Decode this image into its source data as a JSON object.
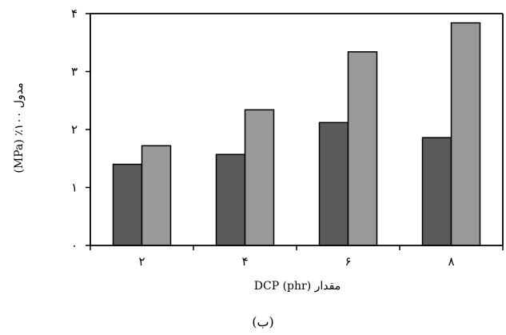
{
  "chart_data": {
    "type": "bar",
    "title": "",
    "xlabel": "مقدار DCP (phr)",
    "ylabel": "مدول ۱۰۰٪ (MPa)",
    "caption": "(ب)",
    "categories": [
      "۲",
      "۴",
      "۶",
      "۸"
    ],
    "series": [
      {
        "color": "#5a5a5a",
        "values": [
          1.4,
          1.57,
          2.12,
          1.86
        ]
      },
      {
        "color": "#999999",
        "values": [
          1.72,
          2.34,
          3.34,
          3.84
        ]
      }
    ],
    "ylim": [
      0,
      4
    ],
    "yticks": [
      0,
      1,
      2,
      3,
      4
    ],
    "ytick_labels": [
      "۰",
      "۱",
      "۲",
      "۳",
      "۴"
    ],
    "grid": false,
    "legend": "none"
  }
}
